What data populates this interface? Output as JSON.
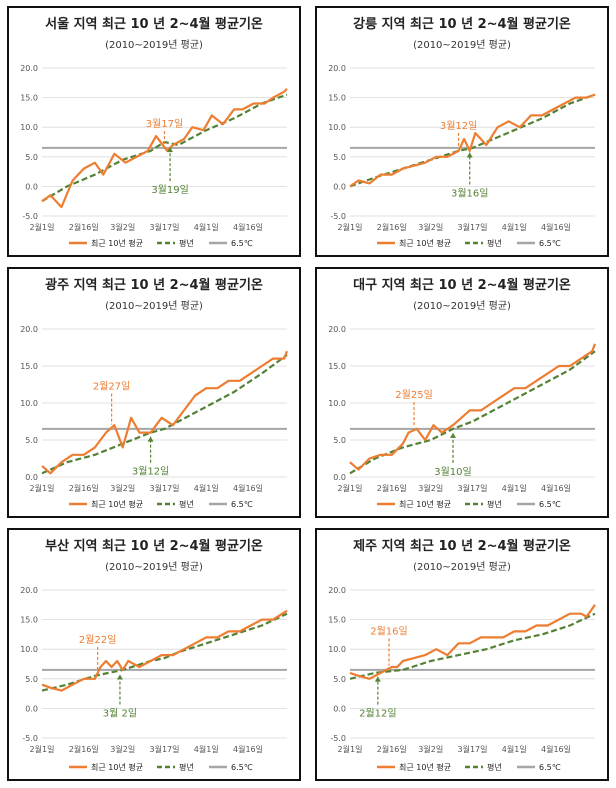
{
  "colors": {
    "recent": "#ED7D31",
    "normal": "#548235",
    "threshold": "#A6A6A6",
    "grid": "#D9D9D9"
  },
  "shared": {
    "subtitle": "(2010~2019년 평균)",
    "x_tick_labels": [
      "2월1일",
      "2월16일",
      "3월2일",
      "3월17일",
      "4월1일",
      "4월16일"
    ],
    "legend": {
      "recent": "최근 10년 평균",
      "normal": "평년",
      "threshold": "6.5℃"
    }
  },
  "chart_data": [
    {
      "type": "line",
      "title": "서울 지역 최근 10 년 2~4월 평균기온",
      "x_range": [
        "2월1일",
        "4월30일"
      ],
      "ylim": [
        -5,
        20
      ],
      "y_ticks": [
        "-5.0",
        "0.0",
        "5.0",
        "10.0",
        "15.0",
        "20.0"
      ],
      "threshold": 6.5,
      "series": [
        {
          "name": "최근 10년 평균",
          "x_day": [
            1,
            4,
            8,
            12,
            16,
            20,
            23,
            27,
            31,
            35,
            39,
            42,
            46,
            48,
            52,
            55,
            59,
            62,
            66,
            70,
            73,
            77,
            81,
            84,
            88,
            89
          ],
          "values": [
            -2.5,
            -1.5,
            -3.5,
            1,
            3,
            4,
            2,
            5.5,
            4,
            5,
            6,
            8.5,
            6,
            7,
            8,
            10,
            9.5,
            12,
            10.5,
            13,
            13,
            14,
            14,
            15,
            16,
            16.5
          ]
        },
        {
          "name": "평년",
          "x_day": [
            1,
            10,
            20,
            30,
            40,
            45,
            50,
            60,
            70,
            80,
            89
          ],
          "values": [
            -2.5,
            0,
            2,
            4.5,
            6,
            7.5,
            7,
            9.5,
            11.5,
            14,
            15.5
          ]
        }
      ],
      "annotations": [
        {
          "text": "3월17일",
          "series": "최근 10년 평균"
        },
        {
          "text": "3월19일",
          "series": "평년"
        }
      ]
    },
    {
      "type": "line",
      "title": "강릉 지역 최근 10 년 2~4월 평균기온",
      "x_range": [
        "2월1일",
        "4월30일"
      ],
      "ylim": [
        -5,
        20
      ],
      "y_ticks": [
        "-5.0",
        "0.0",
        "5.0",
        "10.0",
        "15.0",
        "20.0"
      ],
      "threshold": 6.5,
      "series": [
        {
          "name": "최근 10년 평균",
          "x_day": [
            1,
            4,
            8,
            12,
            16,
            20,
            24,
            28,
            32,
            36,
            40,
            42,
            44,
            46,
            48,
            50,
            54,
            58,
            62,
            66,
            70,
            74,
            78,
            82,
            86,
            89
          ],
          "values": [
            0,
            1,
            0.5,
            2,
            2,
            3,
            3.5,
            4,
            5,
            5,
            6,
            8,
            6,
            9,
            8,
            7,
            10,
            11,
            10,
            12,
            12,
            13,
            14,
            15,
            15,
            15.5
          ]
        },
        {
          "name": "평년",
          "x_day": [
            1,
            10,
            20,
            30,
            40,
            45,
            50,
            60,
            70,
            80,
            89
          ],
          "values": [
            0,
            1.5,
            3,
            4.5,
            6,
            6.5,
            7.5,
            9.5,
            11.5,
            14,
            15.5
          ]
        }
      ],
      "annotations": [
        {
          "text": "3월12일",
          "series": "최근 10년 평균"
        },
        {
          "text": "3월16일",
          "series": "평년"
        }
      ]
    },
    {
      "type": "line",
      "title": "광주 지역 최근 10 년 2~4월 평균기온",
      "x_range": [
        "2월1일",
        "4월30일"
      ],
      "ylim": [
        0,
        20
      ],
      "y_ticks": [
        "0.0",
        "5.0",
        "10.0",
        "15.0",
        "20.0"
      ],
      "threshold": 6.5,
      "series": [
        {
          "name": "최근 10년 평균",
          "x_day": [
            1,
            4,
            8,
            12,
            16,
            20,
            24,
            27,
            30,
            33,
            36,
            40,
            42,
            44,
            48,
            52,
            56,
            60,
            64,
            68,
            72,
            76,
            80,
            84,
            88,
            89
          ],
          "values": [
            1.5,
            0.5,
            2,
            3,
            3,
            4,
            6,
            7,
            4,
            8,
            6,
            6,
            7,
            8,
            7,
            9,
            11,
            12,
            12,
            13,
            13,
            14,
            15,
            16,
            16,
            17
          ]
        },
        {
          "name": "평년",
          "x_day": [
            1,
            10,
            20,
            30,
            40,
            45,
            50,
            60,
            70,
            80,
            89
          ],
          "values": [
            0.5,
            2,
            3,
            4.5,
            6,
            6.5,
            7.5,
            9.5,
            11.5,
            14,
            16.5
          ]
        }
      ],
      "annotations": [
        {
          "text": "2월27일",
          "series": "최근 10년 평균"
        },
        {
          "text": "3월12일",
          "series": "평년"
        }
      ]
    },
    {
      "type": "line",
      "title": "대구 지역 최근 10 년 2~4월 평균기온",
      "x_range": [
        "2월1일",
        "4월30일"
      ],
      "ylim": [
        0,
        20
      ],
      "y_ticks": [
        "0.0",
        "5.0",
        "10.0",
        "15.0",
        "20.0"
      ],
      "threshold": 6.5,
      "series": [
        {
          "name": "최근 10년 평균",
          "x_day": [
            1,
            4,
            8,
            12,
            16,
            20,
            22,
            25,
            28,
            31,
            34,
            38,
            41,
            44,
            48,
            52,
            56,
            60,
            64,
            68,
            72,
            76,
            80,
            84,
            88,
            89
          ],
          "values": [
            2,
            1,
            2.5,
            3,
            3,
            4.5,
            6,
            6.5,
            5,
            7,
            6,
            7,
            8,
            9,
            9,
            10,
            11,
            12,
            12,
            13,
            14,
            15,
            15,
            16,
            17,
            18
          ]
        },
        {
          "name": "평년",
          "x_day": [
            1,
            10,
            20,
            30,
            38,
            45,
            50,
            60,
            70,
            80,
            89
          ],
          "values": [
            0.5,
            2.5,
            4,
            5,
            6.5,
            7.5,
            8.5,
            10.5,
            12.5,
            14.5,
            17
          ]
        }
      ],
      "annotations": [
        {
          "text": "2월25일",
          "series": "최근 10년 평균"
        },
        {
          "text": "3월10일",
          "series": "평년"
        }
      ]
    },
    {
      "type": "line",
      "title": "부산 지역 최근 10 년 2~4월 평균기온",
      "x_range": [
        "2월1일",
        "4월30일"
      ],
      "ylim": [
        -5,
        20
      ],
      "y_ticks": [
        "-5.0",
        "0.0",
        "5.0",
        "10.0",
        "15.0",
        "20.0"
      ],
      "threshold": 6.5,
      "series": [
        {
          "name": "최근 10년 평균",
          "x_day": [
            1,
            4,
            8,
            12,
            16,
            20,
            22,
            24,
            26,
            28,
            30,
            32,
            36,
            40,
            44,
            48,
            52,
            56,
            60,
            64,
            68,
            72,
            76,
            80,
            84,
            89
          ],
          "values": [
            4,
            3.5,
            3,
            4,
            5,
            5,
            7,
            8,
            7,
            8,
            6.5,
            8,
            7,
            8,
            9,
            9,
            10,
            11,
            12,
            12,
            13,
            13,
            14,
            15,
            15,
            16.5
          ]
        },
        {
          "name": "평년",
          "x_day": [
            1,
            10,
            20,
            30,
            40,
            45,
            50,
            60,
            70,
            80,
            89
          ],
          "values": [
            3,
            4,
            5.5,
            6.5,
            8,
            8.5,
            9.5,
            11,
            12.5,
            14,
            16
          ]
        }
      ],
      "annotations": [
        {
          "text": "2월22일",
          "series": "최근 10년 평균"
        },
        {
          "text": "3월 2일",
          "series": "평년"
        }
      ]
    },
    {
      "type": "line",
      "title": "제주 지역 최근 10 년 2~4월 평균기온",
      "x_range": [
        "2월1일",
        "4월30일"
      ],
      "ylim": [
        -5,
        20
      ],
      "y_ticks": [
        "-5.0",
        "0.0",
        "5.0",
        "10.0",
        "15.0",
        "20.0"
      ],
      "threshold": 6.5,
      "series": [
        {
          "name": "최근 10년 평균",
          "x_day": [
            1,
            4,
            8,
            12,
            16,
            18,
            20,
            24,
            28,
            32,
            36,
            40,
            44,
            48,
            52,
            56,
            60,
            64,
            68,
            72,
            76,
            80,
            84,
            86,
            89
          ],
          "values": [
            6,
            5.5,
            5,
            6,
            7,
            7,
            8,
            8.5,
            9,
            10,
            9,
            11,
            11,
            12,
            12,
            12,
            13,
            13,
            14,
            14,
            15,
            16,
            16,
            15.5,
            17.5
          ]
        },
        {
          "name": "평년",
          "x_day": [
            1,
            10,
            20,
            30,
            40,
            50,
            60,
            70,
            80,
            89
          ],
          "values": [
            5,
            6,
            6.5,
            8,
            9,
            10,
            11.5,
            12.5,
            14,
            16
          ]
        }
      ],
      "annotations": [
        {
          "text": "2월16일",
          "series": "최근 10년 평균"
        },
        {
          "text": "2월12일",
          "series": "평년"
        }
      ]
    }
  ]
}
